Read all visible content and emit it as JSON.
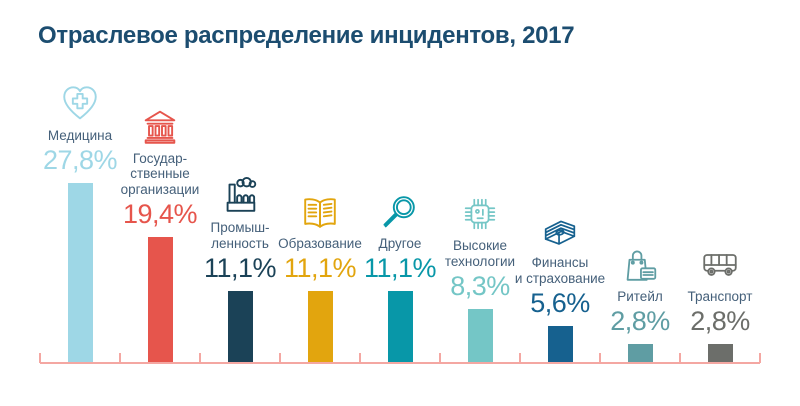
{
  "title": "Отраслевое распределение инцидентов, 2017",
  "colors": {
    "title": "#1c4d70",
    "category_label": "#45607a",
    "axis": "#f4a7a2",
    "background": "#ffffff"
  },
  "chart_data": {
    "type": "bar",
    "title": "Отраслевое распределение инцидентов, 2017",
    "xlabel": "",
    "ylabel": "",
    "unit": "%",
    "ylim": [
      0,
      27.8
    ],
    "grid": false,
    "legend": "none",
    "value_labels": "above bars with category icons",
    "categories": [
      "Медицина",
      "Государственные организации",
      "Промышленность",
      "Образование",
      "Другое",
      "Высокие технологии",
      "Финансы и страхование",
      "Ритейл",
      "Транспорт"
    ],
    "values": [
      27.8,
      19.4,
      11.1,
      11.1,
      11.1,
      8.3,
      5.6,
      2.8,
      2.8
    ],
    "bars": [
      {
        "label_lines": [
          "Медицина"
        ],
        "value": 27.8,
        "display": "27,8%",
        "color": "#9ed7e6",
        "icon": "heart-medical-icon"
      },
      {
        "label_lines": [
          "Государ-",
          "ственные",
          "организации"
        ],
        "value": 19.4,
        "display": "19,4%",
        "color": "#e6554c",
        "icon": "bank-building-icon"
      },
      {
        "label_lines": [
          "Промыш-",
          "ленность"
        ],
        "value": 11.1,
        "display": "11,1%",
        "color": "#1b4257",
        "icon": "factory-icon"
      },
      {
        "label_lines": [
          "Образование"
        ],
        "value": 11.1,
        "display": "11,1%",
        "color": "#e2a50e",
        "icon": "open-book-icon"
      },
      {
        "label_lines": [
          "Другое"
        ],
        "value": 11.1,
        "display": "11,1%",
        "color": "#0897a8",
        "icon": "magnifier-icon"
      },
      {
        "label_lines": [
          "Высокие",
          "технологии"
        ],
        "value": 8.3,
        "display": "8,3%",
        "color": "#74c6c6",
        "icon": "chip-icon"
      },
      {
        "label_lines": [
          "Финансы",
          "и страхование"
        ],
        "value": 5.6,
        "display": "5,6%",
        "color": "#16618f",
        "icon": "money-stack-icon"
      },
      {
        "label_lines": [
          "Ритейл"
        ],
        "value": 2.8,
        "display": "2,8%",
        "color": "#5f9da3",
        "icon": "shopping-bag-icon"
      },
      {
        "label_lines": [
          "Транспорт"
        ],
        "value": 2.8,
        "display": "2,8%",
        "color": "#6c6e6a",
        "icon": "bus-icon"
      }
    ]
  }
}
